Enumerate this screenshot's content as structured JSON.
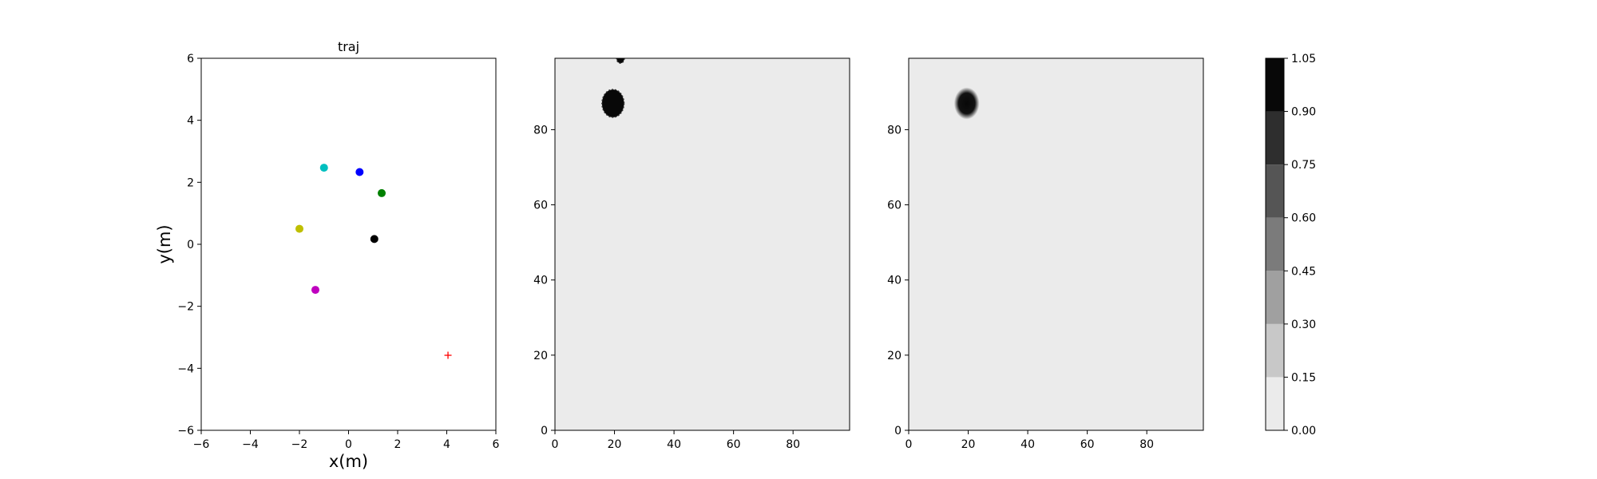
{
  "chart_data": [
    {
      "type": "scatter",
      "title": "traj",
      "xlabel": "x(m)",
      "ylabel": "y(m)",
      "xlim": [
        -6,
        6
      ],
      "ylim": [
        -6,
        6
      ],
      "xticks": [
        "−6",
        "−4",
        "−2",
        "0",
        "2",
        "4",
        "6"
      ],
      "yticks": [
        "−6",
        "−4",
        "−2",
        "0",
        "2",
        "4",
        "6"
      ],
      "grid": false,
      "points": [
        {
          "x": -1.0,
          "y": 2.47,
          "color": "#00bfbf",
          "marker": "circle"
        },
        {
          "x": 0.45,
          "y": 2.33,
          "color": "#0000ff",
          "marker": "circle"
        },
        {
          "x": 1.35,
          "y": 1.65,
          "color": "#008000",
          "marker": "circle"
        },
        {
          "x": -2.0,
          "y": 0.5,
          "color": "#bfbf00",
          "marker": "circle"
        },
        {
          "x": 1.05,
          "y": 0.17,
          "color": "#000000",
          "marker": "circle"
        },
        {
          "x": -1.35,
          "y": -1.47,
          "color": "#bf00bf",
          "marker": "circle"
        },
        {
          "x": 4.05,
          "y": -3.58,
          "color": "#ff0000",
          "marker": "plus"
        }
      ]
    },
    {
      "type": "heatmap",
      "title": "",
      "xlim": [
        0,
        99
      ],
      "ylim": [
        0,
        99
      ],
      "xticks": [
        "0",
        "20",
        "40",
        "60",
        "80"
      ],
      "yticks": [
        "0",
        "20",
        "40",
        "60",
        "80"
      ],
      "background_value": 0.05,
      "blobs": [
        {
          "cx": 19.5,
          "cy": 87,
          "r": 3.7,
          "value": 1.0,
          "edge": "hard"
        },
        {
          "cx": 22,
          "cy": 99,
          "r": 1.3,
          "value": 0.9,
          "edge": "hard"
        }
      ]
    },
    {
      "type": "heatmap",
      "title": "",
      "xlim": [
        0,
        99
      ],
      "ylim": [
        0,
        99
      ],
      "xticks": [
        "0",
        "20",
        "40",
        "60",
        "80"
      ],
      "yticks": [
        "0",
        "20",
        "40",
        "60",
        "80"
      ],
      "background_value": 0.05,
      "blobs": [
        {
          "cx": 19.5,
          "cy": 87,
          "r": 3.4,
          "value": 1.0,
          "edge": "soft"
        }
      ]
    }
  ],
  "colorbar": {
    "ticks": [
      "0.00",
      "0.15",
      "0.30",
      "0.45",
      "0.60",
      "0.75",
      "0.90",
      "1.05"
    ],
    "levels": [
      0,
      0.15,
      0.3,
      0.45,
      0.6,
      0.75,
      0.9,
      1.05
    ],
    "colors": [
      "#ebebeb",
      "#c8c8c8",
      "#a0a0a0",
      "#7b7b7b",
      "#555555",
      "#2e2e2e",
      "#080808"
    ]
  }
}
